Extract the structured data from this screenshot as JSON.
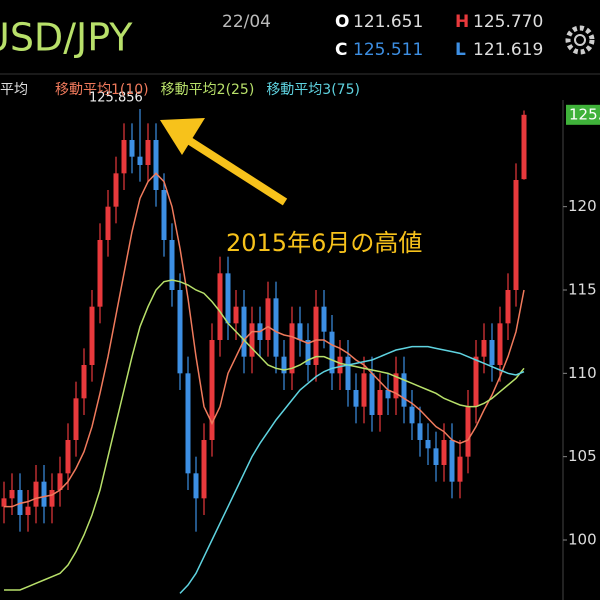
{
  "chart_data": {
    "type": "candlestick",
    "title": "USD/JPY",
    "date": "22/04",
    "header": {
      "o_label": "O",
      "o": "121.651",
      "h_label": "H",
      "h": "125.770",
      "c_label": "C",
      "c": "125.511",
      "l_label": "L",
      "l": "121.619"
    },
    "legend_cut": "平均",
    "annotation_price": "125.856",
    "annotation": "2015年6月の高値",
    "up_color": "#e8393c",
    "down_color": "#3d8fe3",
    "ylim": [
      96.4,
      126.4
    ],
    "yticks": [
      100,
      105,
      110,
      115,
      120
    ],
    "open": [
      102,
      102.5,
      103,
      101.5,
      102,
      103.5,
      102,
      103,
      104,
      106,
      108.5,
      110.5,
      114,
      118,
      120,
      122,
      124,
      123,
      122.5,
      124,
      121,
      118,
      115,
      110,
      104,
      102.5,
      106,
      112,
      116,
      113,
      114,
      111,
      113,
      112,
      114.5,
      111,
      110,
      113,
      112,
      110.5,
      114,
      112.5,
      110,
      111,
      109,
      108,
      110,
      107.5,
      109,
      108.5,
      110,
      108,
      107,
      106,
      105.5,
      104.5,
      106,
      103.5,
      105,
      108,
      111,
      112,
      110.5,
      113,
      115,
      121.651
    ],
    "high": [
      103.5,
      104,
      104,
      103,
      104.5,
      104.5,
      104,
      105,
      107,
      109.5,
      111.5,
      115,
      119,
      121,
      123,
      125,
      125,
      125.86,
      125,
      125,
      122,
      119,
      116,
      111,
      105,
      107,
      113,
      117,
      117,
      115,
      115,
      114,
      114,
      115.5,
      115.5,
      112,
      114,
      114,
      113,
      115,
      115,
      113.5,
      112,
      112,
      110,
      111,
      111,
      110,
      110,
      111,
      111,
      109,
      108,
      107,
      106.5,
      107,
      107,
      106,
      109,
      112,
      113,
      113,
      114,
      116,
      122.6,
      125.77
    ],
    "low": [
      101,
      101.5,
      100.5,
      100.5,
      101,
      101,
      101,
      102,
      103,
      105,
      107.5,
      109.5,
      113,
      117,
      119,
      121,
      122,
      121.5,
      121.5,
      120,
      117,
      114,
      109,
      103,
      100.5,
      101.5,
      105,
      111,
      112,
      112,
      110,
      110,
      111,
      111,
      110,
      109,
      109,
      111,
      109.5,
      109.5,
      111.5,
      109,
      109,
      108,
      107,
      107,
      106.5,
      106.5,
      107.5,
      107.5,
      107,
      106,
      105,
      104.5,
      103.5,
      103.5,
      102.5,
      102.5,
      104,
      107,
      110,
      109.5,
      109.5,
      112,
      114,
      121.619
    ],
    "close": [
      102.5,
      103,
      101.5,
      102,
      103.5,
      102,
      103,
      104,
      106,
      108.5,
      110.5,
      114,
      118,
      120,
      122,
      124,
      123,
      122.5,
      124,
      121,
      118,
      115,
      110,
      104,
      102.5,
      106,
      112,
      116,
      113,
      114,
      111,
      113,
      112,
      114.5,
      111,
      110,
      113,
      112,
      110.5,
      114,
      112.5,
      110,
      111,
      109,
      108,
      110,
      107.5,
      109,
      108.5,
      110,
      108,
      107,
      106,
      105.5,
      104.5,
      106,
      103.5,
      105,
      108,
      111,
      112,
      110.5,
      113,
      115,
      121.6,
      125.511
    ],
    "series": [
      {
        "name": "移動平均1(10)",
        "color": "#f07a5c",
        "values": [
          102,
          102,
          102.2,
          102.3,
          102.5,
          102.6,
          102.7,
          103,
          103.5,
          104.3,
          105.3,
          106.8,
          108.8,
          111,
          113.5,
          116,
          118.5,
          120.5,
          121.5,
          122,
          121.5,
          120,
          117.5,
          114.5,
          111,
          108,
          107,
          108,
          110,
          111,
          112,
          112.5,
          112.5,
          112.8,
          112.5,
          112.3,
          112.2,
          112,
          111.8,
          112,
          112,
          111.7,
          111.5,
          111.2,
          110.8,
          110.5,
          110,
          109.5,
          109,
          108.8,
          108.5,
          108.2,
          107.8,
          107.3,
          106.8,
          106.5,
          106,
          105.8,
          106,
          106.8,
          107.8,
          108.7,
          109.8,
          111,
          112.5,
          115
        ]
      },
      {
        "name": "移動平均2(25)",
        "color": "#b8e06a",
        "values": [
          97,
          97,
          97,
          97.2,
          97.4,
          97.6,
          97.8,
          98,
          98.5,
          99.3,
          100.3,
          101.5,
          103,
          105,
          107,
          109,
          111,
          112.8,
          114,
          115,
          115.5,
          115.6,
          115.5,
          115.3,
          115,
          114.8,
          114.3,
          113.7,
          113,
          112.5,
          112,
          111.5,
          111,
          110.5,
          110.3,
          110.2,
          110.3,
          110.5,
          110.8,
          111,
          111,
          110.8,
          110.6,
          110.5,
          110.4,
          110.3,
          110.2,
          110.1,
          110,
          109.8,
          109.6,
          109.4,
          109.2,
          109,
          108.8,
          108.5,
          108.3,
          108.1,
          108,
          108,
          108.2,
          108.5,
          108.9,
          109.3,
          109.7,
          110.3
        ]
      },
      {
        "name": "移動平均3(75)",
        "color": "#5fd3e0",
        "values": [
          null,
          null,
          null,
          null,
          null,
          null,
          null,
          null,
          null,
          null,
          null,
          null,
          null,
          null,
          null,
          null,
          null,
          null,
          null,
          null,
          null,
          null,
          96.8,
          97.3,
          98,
          99,
          100,
          101,
          102,
          103,
          104,
          105,
          105.8,
          106.5,
          107.2,
          107.8,
          108.4,
          109,
          109.4,
          109.8,
          110.1,
          110.3,
          110.4,
          110.5,
          110.6,
          110.7,
          110.8,
          111,
          111.2,
          111.4,
          111.5,
          111.6,
          111.6,
          111.6,
          111.5,
          111.4,
          111.3,
          111.2,
          111,
          110.8,
          110.6,
          110.4,
          110.2,
          110,
          109.9,
          110.1
        ]
      }
    ],
    "last_price_color": "#3fb23a"
  }
}
